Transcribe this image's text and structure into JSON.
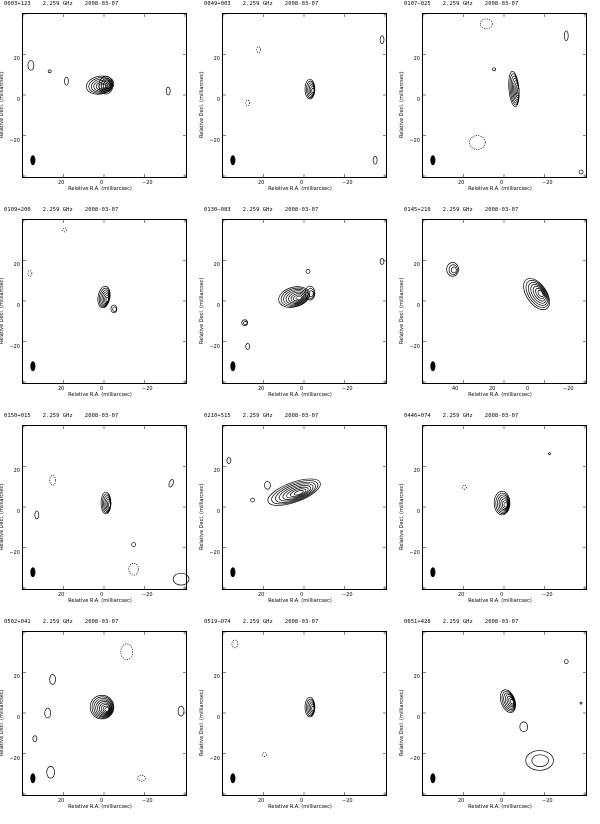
{
  "axes": {
    "xlabel": "Relative R.A. (milliarcsec)",
    "ylabel": "Relative Decl. (milliarcsec)"
  },
  "panels": [
    {
      "source": "0003+123",
      "freq": "2.259 GHz",
      "date": "2008-03-07",
      "xticks": [
        "20",
        "0",
        "−20"
      ],
      "yticks": [
        "20",
        "0",
        "−20"
      ]
    },
    {
      "source": "0049+003",
      "freq": "2.259 GHz",
      "date": "2008-03-07",
      "xticks": [
        "20",
        "0",
        "−20"
      ],
      "yticks": [
        "20",
        "0",
        "−20"
      ]
    },
    {
      "source": "0107−025",
      "freq": "2.259 GHz",
      "date": "2008-03-07",
      "xticks": [
        "20",
        "0",
        "−20"
      ],
      "yticks": [
        "20",
        "0",
        "−20"
      ]
    },
    {
      "source": "0109+200",
      "freq": "2.259 GHz",
      "date": "2008-03-07",
      "xticks": [
        "20",
        "0",
        "−20"
      ],
      "yticks": [
        "20",
        "0",
        "−20"
      ]
    },
    {
      "source": "0130−083",
      "freq": "2.259 GHz",
      "date": "2008-03-07",
      "xticks": [
        "20",
        "0",
        "−20"
      ],
      "yticks": [
        "20",
        "0",
        "−20"
      ]
    },
    {
      "source": "0145+210",
      "freq": "2.259 GHz",
      "date": "2008-03-07",
      "xticks": [
        "40",
        "20",
        "0",
        "−20"
      ],
      "yticks": [
        "20",
        "0",
        "−20"
      ]
    },
    {
      "source": "0150+015",
      "freq": "2.259 GHz",
      "date": "2008-03-07",
      "xticks": [
        "20",
        "0",
        "−20"
      ],
      "yticks": [
        "20",
        "0",
        "−20"
      ]
    },
    {
      "source": "0210+515",
      "freq": "2.259 GHz",
      "date": "2008-03-07",
      "xticks": [
        "20",
        "0",
        "−20"
      ],
      "yticks": [
        "20",
        "0",
        "−20"
      ]
    },
    {
      "source": "0446+074",
      "freq": "2.259 GHz",
      "date": "2008-03-07",
      "xticks": [
        "20",
        "0",
        "−20"
      ],
      "yticks": [
        "20",
        "0",
        "−20"
      ]
    },
    {
      "source": "0502+041",
      "freq": "2.259 GHz",
      "date": "2008-03-07",
      "xticks": [
        "20",
        "0",
        "−20"
      ],
      "yticks": [
        "20",
        "0",
        "−20"
      ]
    },
    {
      "source": "0519−074",
      "freq": "2.259 GHz",
      "date": "2008-03-07",
      "xticks": [
        "20",
        "0",
        "−20"
      ],
      "yticks": [
        "20",
        "0",
        "−20"
      ]
    },
    {
      "source": "0651+428",
      "freq": "2.259 GHz",
      "date": "2008-03-07",
      "xticks": [
        "20",
        "0",
        "−20"
      ],
      "yticks": [
        "20",
        "0",
        "−20"
      ]
    }
  ]
}
